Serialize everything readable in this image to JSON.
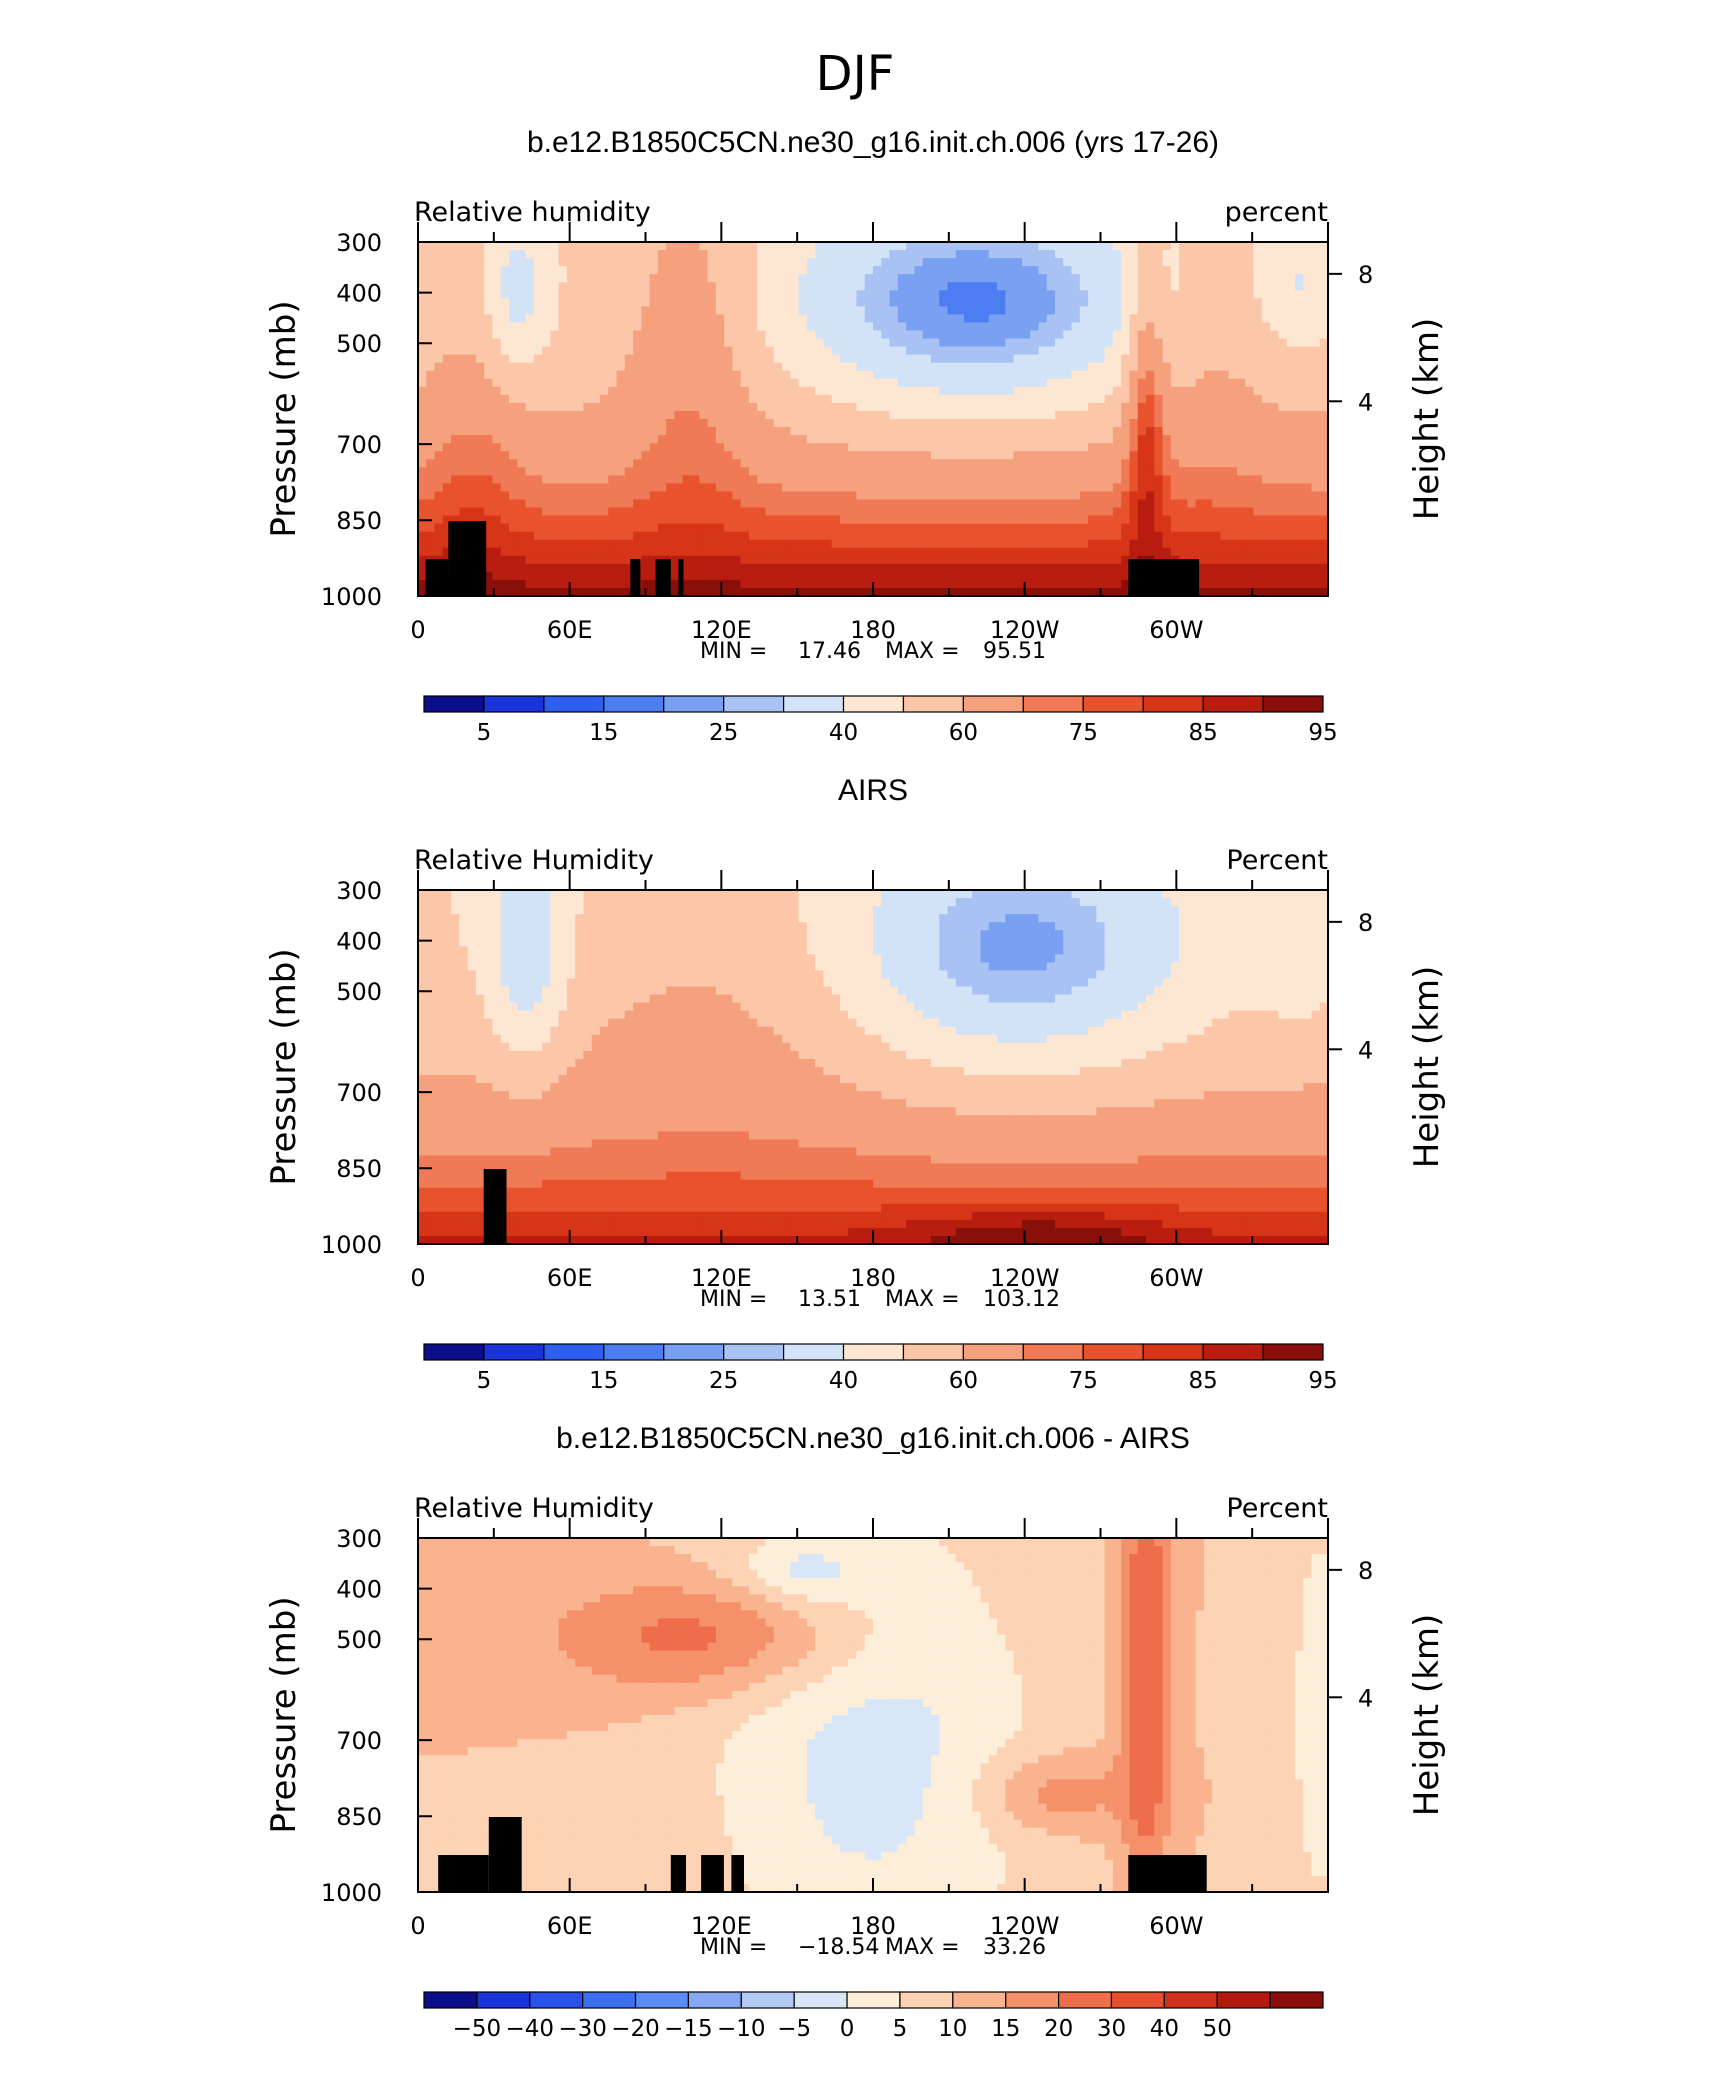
{
  "suptitle": "DJF",
  "colors": {
    "map15": [
      "#0c0e8c",
      "#1b34d8",
      "#2f5ef0",
      "#4c7ef2",
      "#7aa1f1",
      "#a8c2f3",
      "#d3e3f7",
      "#fde7d2",
      "#fbc7a8",
      "#f6a17e",
      "#f07a56",
      "#e8532e",
      "#d73518",
      "#b81d10",
      "#8a0f0a"
    ],
    "diff17": [
      "#0c0e8c",
      "#1b34d8",
      "#2a52ea",
      "#3d70f0",
      "#5b8bf2",
      "#86a8f3",
      "#b3caf5",
      "#d8e6f8",
      "#fdeed9",
      "#fcd3b4",
      "#f9b38e",
      "#f4916b",
      "#ee6e4b",
      "#e54f2d",
      "#d1301a",
      "#b3190f",
      "#8a0f0a"
    ],
    "land": "#000000"
  },
  "panels": [
    {
      "title": "b.e12.B1850C5CN.ne30_g16.init.ch.006 (yrs 17-26)",
      "var_label": "Relative humidity",
      "units_label": "percent",
      "ylabel": "Pressure (mb)",
      "ylabel_right": "Height (km)",
      "yticks": [
        "300",
        "400",
        "500",
        "700",
        "850",
        "1000"
      ],
      "yticks_right": [
        "8",
        "4"
      ],
      "xticks": [
        "0",
        "60E",
        "120E",
        "180",
        "120W",
        "60W"
      ],
      "min_label": "MIN =",
      "min_value": "17.46",
      "max_label": "MAX =",
      "max_value": "95.51",
      "cbar_labels": [
        "5",
        "15",
        "25",
        "40",
        "60",
        "75",
        "85",
        "95"
      ],
      "cmap": "map15"
    },
    {
      "title": "AIRS",
      "var_label": "Relative Humidity",
      "units_label": "Percent",
      "ylabel": "Pressure (mb)",
      "ylabel_right": "Height (km)",
      "yticks": [
        "300",
        "400",
        "500",
        "700",
        "850",
        "1000"
      ],
      "yticks_right": [
        "8",
        "4"
      ],
      "xticks": [
        "0",
        "60E",
        "120E",
        "180",
        "120W",
        "60W"
      ],
      "min_label": "MIN =",
      "min_value": "13.51",
      "max_label": "MAX =",
      "max_value": "103.12",
      "cbar_labels": [
        "5",
        "15",
        "25",
        "40",
        "60",
        "75",
        "85",
        "95"
      ],
      "cmap": "map15"
    },
    {
      "title": "b.e12.B1850C5CN.ne30_g16.init.ch.006 - AIRS",
      "var_label": "Relative Humidity",
      "units_label": "Percent",
      "ylabel": "Pressure (mb)",
      "ylabel_right": "Height (km)",
      "yticks": [
        "300",
        "400",
        "500",
        "700",
        "850",
        "1000"
      ],
      "yticks_right": [
        "8",
        "4"
      ],
      "xticks": [
        "0",
        "60E",
        "120E",
        "180",
        "120W",
        "60W"
      ],
      "min_label": "MIN =",
      "min_value": "−18.54",
      "max_label": "MAX =",
      "max_value": "33.26",
      "cbar_labels": [
        "−50",
        "−40",
        "−30",
        "−20",
        "−15",
        "−10",
        "−5",
        "0",
        "5",
        "10",
        "15",
        "20",
        "30",
        "40",
        "50"
      ],
      "cmap": "diff17"
    }
  ],
  "chart_data": [
    {
      "type": "heatmap",
      "title": "b.e12.B1850C5CN.ne30_g16.init.ch.006 (yrs 17-26)",
      "xlabel": "",
      "ylabel": "Pressure (mb)",
      "x_range": [
        0,
        360
      ],
      "y_range": [
        1000,
        300
      ],
      "levels": [
        5,
        10,
        15,
        20,
        25,
        30,
        40,
        50,
        60,
        70,
        75,
        80,
        85,
        90,
        95
      ],
      "min": 17.46,
      "max": 95.51,
      "land_blocks_lon": [
        [
          3,
          12
        ],
        [
          12,
          27
        ],
        [
          84,
          88
        ],
        [
          94,
          100
        ],
        [
          103,
          105
        ],
        [
          281,
          309
        ]
      ]
    },
    {
      "type": "heatmap",
      "title": "AIRS",
      "xlabel": "",
      "ylabel": "Pressure (mb)",
      "x_range": [
        0,
        360
      ],
      "y_range": [
        1000,
        300
      ],
      "levels": [
        5,
        10,
        15,
        20,
        25,
        30,
        40,
        50,
        60,
        70,
        75,
        80,
        85,
        90,
        95
      ],
      "min": 13.51,
      "max": 103.12,
      "land_blocks_lon": [
        [
          26,
          35
        ]
      ]
    },
    {
      "type": "heatmap",
      "title": "b.e12.B1850C5CN.ne30_g16.init.ch.006 - AIRS",
      "xlabel": "",
      "ylabel": "Pressure (mb)",
      "x_range": [
        0,
        360
      ],
      "y_range": [
        1000,
        300
      ],
      "levels": [
        -50,
        -40,
        -30,
        -20,
        -15,
        -10,
        -5,
        0,
        5,
        10,
        15,
        20,
        30,
        40,
        50
      ],
      "min": -18.54,
      "max": 33.26,
      "land_blocks_lon": [
        [
          8,
          28
        ],
        [
          28,
          41
        ],
        [
          100,
          106
        ],
        [
          112,
          121
        ],
        [
          124,
          129
        ],
        [
          281,
          312
        ]
      ]
    }
  ]
}
